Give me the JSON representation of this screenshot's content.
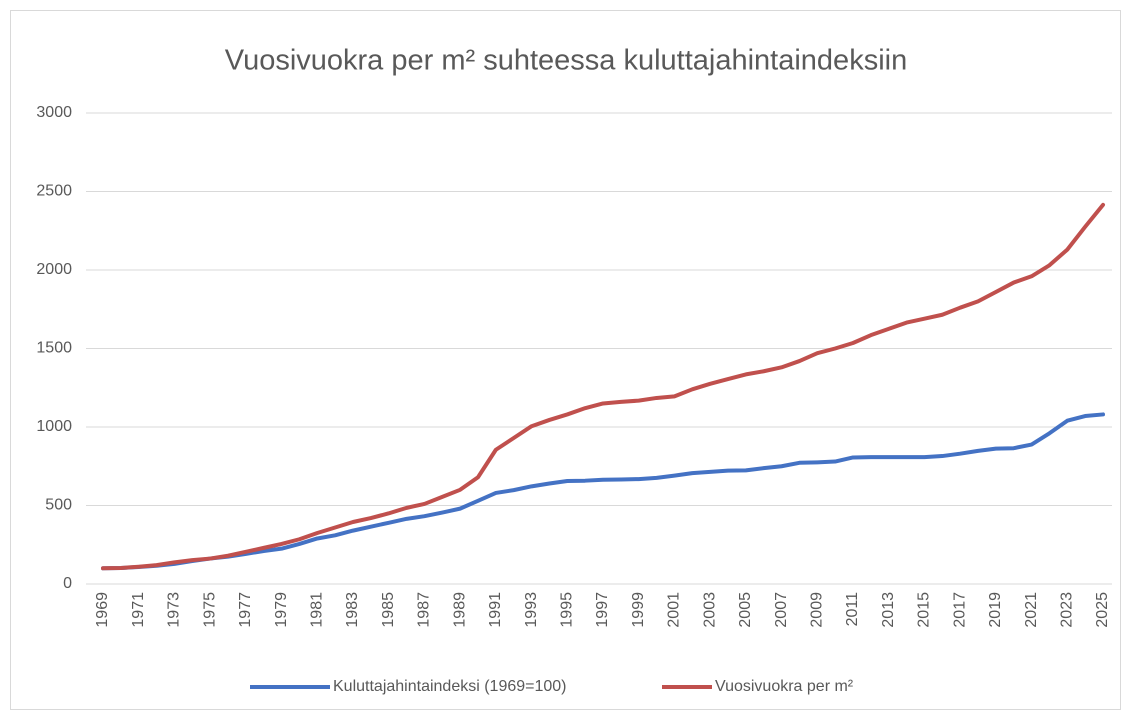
{
  "chart_data": {
    "type": "line",
    "title": "Vuosivuokra per m² suhteessa kuluttajahintaindeksiin",
    "categories": [
      "1969",
      null,
      "1971",
      null,
      "1973",
      null,
      "1975",
      null,
      "1977",
      null,
      "1979",
      null,
      "1981",
      null,
      "1983",
      null,
      "1985",
      null,
      "1987",
      null,
      "1989",
      null,
      "1991",
      null,
      "1993",
      null,
      "1995",
      null,
      "1997",
      null,
      "1999",
      null,
      "2001",
      null,
      "2003",
      null,
      "2005",
      null,
      "2007",
      null,
      "2009",
      null,
      "2011",
      null,
      "2013",
      null,
      "2015",
      null,
      "2017",
      null,
      "2019",
      null,
      "2021",
      null,
      "2023",
      null,
      "2025"
    ],
    "series": [
      {
        "name": "Kuluttajahintaindeksi (1969=100)",
        "color": "#4472c4",
        "values": [
          100,
          102,
          108,
          116,
          128,
          146,
          162,
          174,
          192,
          210,
          225,
          255,
          290,
          310,
          340,
          365,
          390,
          415,
          432,
          455,
          480,
          530,
          580,
          598,
          622,
          640,
          656,
          658,
          664,
          666,
          668,
          676,
          690,
          706,
          714,
          722,
          724,
          738,
          750,
          772,
          775,
          780,
          806,
          808,
          808,
          808,
          808,
          815,
          830,
          848,
          862,
          865,
          888,
          960,
          1040,
          1070,
          1080
        ]
      },
      {
        "name": "Vuosivuokra per m²",
        "color": "#c0504d",
        "values": [
          100,
          102,
          110,
          120,
          138,
          152,
          162,
          180,
          205,
          230,
          255,
          285,
          325,
          360,
          395,
          420,
          450,
          485,
          510,
          555,
          600,
          680,
          855,
          930,
          1005,
          1045,
          1080,
          1120,
          1150,
          1160,
          1168,
          1185,
          1195,
          1240,
          1275,
          1305,
          1335,
          1355,
          1380,
          1420,
          1470,
          1500,
          1535,
          1585,
          1625,
          1665,
          1690,
          1715,
          1760,
          1800,
          1860,
          1920,
          1960,
          2030,
          2130,
          2275,
          2415
        ]
      }
    ],
    "ylim": [
      0,
      3000
    ],
    "yticks": [
      0,
      500,
      1000,
      1500,
      2000,
      2500,
      3000
    ],
    "grid": true,
    "legend": "bottom"
  }
}
